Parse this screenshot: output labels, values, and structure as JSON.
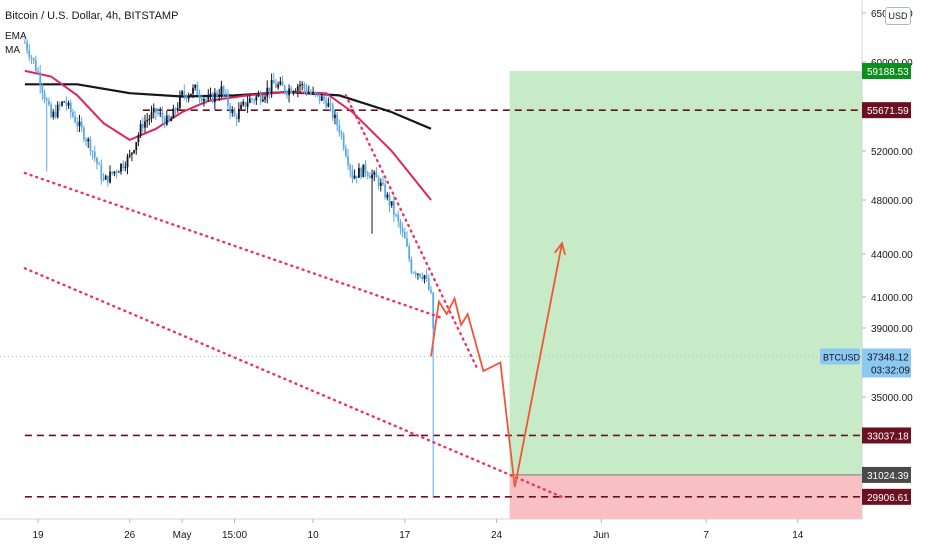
{
  "header": {
    "title": "Bitcoin / U.S. Dollar, 4h, BITSTAMP",
    "indicator_1": "EMA",
    "indicator_2": "MA"
  },
  "currency_button": "USD",
  "price_label": {
    "symbol": "BTCUSD",
    "value": "37348.12",
    "countdown": "03:32:09"
  },
  "colors": {
    "up_candle": "#131722",
    "down_candle": "#5aa9e6",
    "ema": "#e0245e",
    "ma": "#131722",
    "level_line": "#6b1021",
    "trend_dots": "#f0325f",
    "path": "#f0553a",
    "target_zone": "#c8ebc7",
    "stop_zone": "#f8c0c2",
    "target_tag": "#0c8f1f",
    "level_tag": "#6b1021",
    "entry_tag": "#4a4a4a",
    "last_price_tag": "#8cc8f0"
  },
  "chart_data": {
    "type": "candlestick",
    "instrument": "Bitcoin / U.S. Dollar, 4h, BITSTAMP",
    "ylim": [
      27500,
      65000
    ],
    "x_range_days": [
      0,
      47
    ],
    "y_ticks": [
      {
        "value": 65000,
        "label": "65000.00"
      },
      {
        "value": 60000,
        "label": "60000.00"
      },
      {
        "value": 52000,
        "label": "52000.00"
      },
      {
        "value": 48000,
        "label": "48000.00"
      },
      {
        "value": 44000,
        "label": "44000.00"
      },
      {
        "value": 41000,
        "label": "41000.00"
      },
      {
        "value": 39000,
        "label": "39000.00"
      },
      {
        "value": 35000,
        "label": "35000.00"
      }
    ],
    "x_ticks": [
      {
        "day": 1,
        "label": "19"
      },
      {
        "day": 8,
        "label": "26"
      },
      {
        "day": 12,
        "label": "May"
      },
      {
        "day": 16,
        "label": "15:00"
      },
      {
        "day": 22,
        "label": "10"
      },
      {
        "day": 29,
        "label": "17"
      },
      {
        "day": 36,
        "label": "24"
      },
      {
        "day": 44,
        "label": "Jun"
      },
      {
        "day": 52,
        "label": "7"
      },
      {
        "day": 59,
        "label": "14"
      }
    ],
    "price_path": [
      {
        "day": 0,
        "price": 62000
      },
      {
        "day": 1,
        "price": 59000
      },
      {
        "day": 2,
        "price": 55000
      },
      {
        "day": 3,
        "price": 56500
      },
      {
        "day": 4,
        "price": 54500
      },
      {
        "day": 5,
        "price": 52500
      },
      {
        "day": 6,
        "price": 49500
      },
      {
        "day": 7,
        "price": 50500
      },
      {
        "day": 8,
        "price": 51500
      },
      {
        "day": 9,
        "price": 54500
      },
      {
        "day": 10,
        "price": 55500
      },
      {
        "day": 11,
        "price": 54500
      },
      {
        "day": 12,
        "price": 57000
      },
      {
        "day": 13,
        "price": 57500
      },
      {
        "day": 14,
        "price": 56500
      },
      {
        "day": 15,
        "price": 57500
      },
      {
        "day": 16,
        "price": 55000
      },
      {
        "day": 17,
        "price": 56500
      },
      {
        "day": 18,
        "price": 57000
      },
      {
        "day": 19,
        "price": 58000
      },
      {
        "day": 20,
        "price": 57500
      },
      {
        "day": 21,
        "price": 58000
      },
      {
        "day": 22,
        "price": 57000
      },
      {
        "day": 23,
        "price": 56500
      },
      {
        "day": 24,
        "price": 54000
      },
      {
        "day": 25,
        "price": 50000
      },
      {
        "day": 26,
        "price": 50500
      },
      {
        "day": 27,
        "price": 49500
      },
      {
        "day": 28,
        "price": 47500
      },
      {
        "day": 29,
        "price": 45000
      },
      {
        "day": 29.5,
        "price": 43000
      },
      {
        "day": 30.5,
        "price": 42500
      },
      {
        "day": 31,
        "price": 41000
      },
      {
        "day": 31.3,
        "price": 37350
      }
    ],
    "ema_path": [
      {
        "day": 0,
        "price": 59200
      },
      {
        "day": 2,
        "price": 58700
      },
      {
        "day": 4,
        "price": 57000
      },
      {
        "day": 6,
        "price": 54500
      },
      {
        "day": 8,
        "price": 53000
      },
      {
        "day": 10,
        "price": 54000
      },
      {
        "day": 12,
        "price": 55500
      },
      {
        "day": 14,
        "price": 56500
      },
      {
        "day": 17,
        "price": 57000
      },
      {
        "day": 20,
        "price": 57300
      },
      {
        "day": 23,
        "price": 57200
      },
      {
        "day": 25,
        "price": 55500
      },
      {
        "day": 28,
        "price": 52000
      },
      {
        "day": 31,
        "price": 48000
      }
    ],
    "ma_path": [
      {
        "day": 0,
        "price": 58000
      },
      {
        "day": 4,
        "price": 58000
      },
      {
        "day": 8,
        "price": 57200
      },
      {
        "day": 12,
        "price": 56900
      },
      {
        "day": 16,
        "price": 57000
      },
      {
        "day": 20,
        "price": 57300
      },
      {
        "day": 24,
        "price": 57000
      },
      {
        "day": 28,
        "price": 55500
      },
      {
        "day": 31,
        "price": 54000
      }
    ],
    "horizontal_levels": [
      {
        "price": 55671.59,
        "label": "55671.59",
        "day_start": 9
      },
      {
        "price": 33037.18,
        "label": "33037.18",
        "day_start": 0
      },
      {
        "price": 29906.61,
        "label": "29906.61",
        "day_start": 0
      }
    ],
    "trend_lines": [
      {
        "from": {
          "day": 0,
          "price": 50200
        },
        "to": {
          "day": 32,
          "price": 39600
        }
      },
      {
        "from": {
          "day": 0,
          "price": 43000
        },
        "to": {
          "day": 41,
          "price": 29900
        }
      },
      {
        "from": {
          "day": 24.5,
          "price": 57000
        },
        "to": {
          "day": 34.5,
          "price": 36700
        }
      }
    ],
    "projected_path": [
      {
        "day": 31,
        "price": 37350
      },
      {
        "day": 31.6,
        "price": 40700
      },
      {
        "day": 32.2,
        "price": 39900
      },
      {
        "day": 32.8,
        "price": 40900
      },
      {
        "day": 33.3,
        "price": 39200
      },
      {
        "day": 33.8,
        "price": 39900
      },
      {
        "day": 35,
        "price": 36500
      },
      {
        "day": 36.3,
        "price": 37000
      },
      {
        "day": 37.4,
        "price": 30400
      },
      {
        "day": 41,
        "price": 44800
      }
    ],
    "position": {
      "day_start": 37,
      "entry": 31024.39,
      "target": 59188.53,
      "stop": 28500,
      "entry_label": "31024.39",
      "target_label": "59188.53"
    },
    "last_price": 37348.12
  }
}
